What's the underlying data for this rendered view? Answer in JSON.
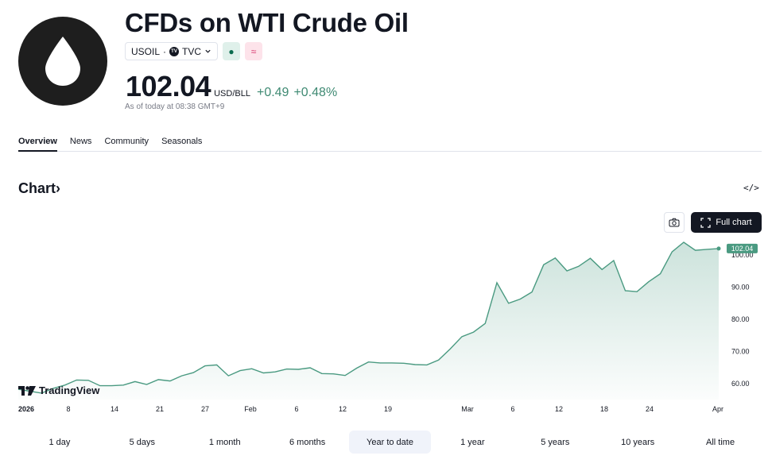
{
  "header": {
    "title": "CFDs on WTI Crude Oil",
    "symbol": "USOIL",
    "exchange": "TVC",
    "tv_badge": "TV",
    "price": "102.04",
    "unit": "USD/BLL",
    "change": "+0.49",
    "change_pct": "+0.48%",
    "as_of": "As of today at 08:38 GMT+9",
    "badge_green_symbol": "●",
    "badge_pink_symbol": "≈",
    "accent_color": "#3f8a73"
  },
  "tabs": [
    {
      "label": "Overview",
      "active": true
    },
    {
      "label": "News",
      "active": false
    },
    {
      "label": "Community",
      "active": false
    },
    {
      "label": "Seasonals",
      "active": false
    }
  ],
  "chart_section": {
    "heading": "Chart",
    "heading_arrow": "›",
    "embed_label": "</>",
    "full_chart_label": "Full chart",
    "watermark": "TradingView"
  },
  "chart_data": {
    "type": "area",
    "line_color": "#4a9a81",
    "x_labels": [
      "2026",
      "8",
      "14",
      "21",
      "27",
      "Feb",
      "6",
      "12",
      "19",
      "Mar",
      "6",
      "12",
      "18",
      "24",
      "Apr"
    ],
    "y_ticks": [
      "60.00",
      "70.00",
      "80.00",
      "90.00",
      "100.00"
    ],
    "y_tick_values": [
      60,
      70,
      80,
      90,
      100
    ],
    "ylim": [
      55,
      104
    ],
    "last_value_label": "102.04",
    "last_value": 102.04,
    "values": [
      58.2,
      57.6,
      57.0,
      58.5,
      59.5,
      61.1,
      61.0,
      59.3,
      59.3,
      59.5,
      60.6,
      59.7,
      61.2,
      60.8,
      62.4,
      63.4,
      65.5,
      65.8,
      62.4,
      64.0,
      64.6,
      63.3,
      63.6,
      64.5,
      64.4,
      64.9,
      63.1,
      63.0,
      62.5,
      64.8,
      66.7,
      66.4,
      66.4,
      66.3,
      65.9,
      65.8,
      67.3,
      70.8,
      74.6,
      76.0,
      78.7,
      91.4,
      85.0,
      86.3,
      88.5,
      97.0,
      99.1,
      95.1,
      96.5,
      99.0,
      95.5,
      98.3,
      88.9,
      88.6,
      91.7,
      94.2,
      101.0,
      104.0,
      101.5,
      101.8,
      102.04
    ]
  },
  "ranges": [
    {
      "label": "1 day",
      "active": false
    },
    {
      "label": "5 days",
      "active": false
    },
    {
      "label": "1 month",
      "active": false
    },
    {
      "label": "6 months",
      "active": false
    },
    {
      "label": "Year to date",
      "active": true
    },
    {
      "label": "1 year",
      "active": false
    },
    {
      "label": "5 years",
      "active": false
    },
    {
      "label": "10 years",
      "active": false
    },
    {
      "label": "All time",
      "active": false
    }
  ]
}
